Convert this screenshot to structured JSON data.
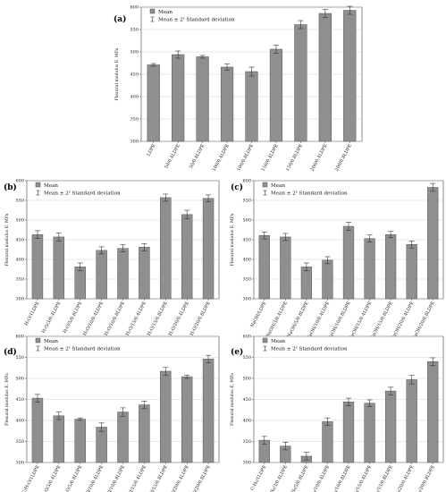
{
  "legend": {
    "mean": "Mean",
    "error": "Mean ± 2",
    "error_sup": "s",
    "error_tail": " Standard deviation"
  },
  "chart_data": [
    {
      "id": "a",
      "label": "(a)",
      "type": "bar",
      "ylabel": "Flexural modulus E, MPa",
      "ylim": [
        300,
        600
      ],
      "yticks": [
        300,
        350,
        400,
        450,
        500,
        550,
        600
      ],
      "categories": [
        "LDPE",
        "50/0.4LDPE",
        "50/0.8LDPE",
        "100/0.4LDPE",
        "100/0.8LDPE",
        "150/0.4LDPE",
        "150/0.8LDPE",
        "200/0.4LDPE",
        "200/0.8LDPE"
      ],
      "values": [
        471,
        494,
        489,
        466,
        456,
        506,
        561,
        586,
        593
      ],
      "errors": [
        3,
        8,
        3,
        7,
        10,
        9,
        9,
        9,
        9
      ],
      "grid": true,
      "legend_position": "top-left"
    },
    {
      "id": "b",
      "label": "(b)",
      "type": "bar",
      "ylabel": "Flexural modulus E, MPa",
      "ylim": [
        300,
        600
      ],
      "yticks": [
        300,
        350,
        400,
        450,
        500,
        550,
        600
      ],
      "categories": [
        "H₂O/1LDPE",
        "H₂O/3/0.4LDPE",
        "H₂O/5/0.8LDPE",
        "H₂O/10/0.4LDPE",
        "H₂O/10/0.8LDPE",
        "H₂O/15/0.4LDPE",
        "H₂O/15/0.8LDPE",
        "H₂O/20/0.4LDPE",
        "H₂O/20/0.8LDPE"
      ],
      "values": [
        463,
        457,
        381,
        423,
        428,
        431,
        557,
        514,
        555
      ],
      "errors": [
        10,
        10,
        10,
        9,
        9,
        9,
        9,
        11,
        9
      ],
      "grid": true,
      "legend_position": "top-left"
    },
    {
      "id": "c",
      "label": "(c)",
      "type": "bar",
      "ylabel": "Flexural modulus E, MPa",
      "ylim": [
        300,
        600
      ],
      "yticks": [
        300,
        350,
        400,
        450,
        500,
        550,
        600
      ],
      "categories": [
        "NaOH/LDPE",
        "NaOH/3/0.4LDPE",
        "NaOH/5/0.8LDPE",
        "NaOH/10/0.4LDPE",
        "NaOH/10/0.8LDPE",
        "NaOH/15/0.4LDPE",
        "NaOH/15/0.8LDPE",
        "NaOH/20/0.4LDPE",
        "NaOH/20/0.8LDPE"
      ],
      "values": [
        461,
        457,
        381,
        398,
        484,
        453,
        463,
        438,
        583
      ],
      "errors": [
        9,
        9,
        10,
        9,
        10,
        9,
        8,
        9,
        10
      ],
      "grid": true,
      "legend_position": "top-left"
    },
    {
      "id": "d",
      "label": "(d)",
      "type": "bar",
      "ylabel": "Flexural modulus E, MPa",
      "ylim": [
        300,
        600
      ],
      "yticks": [
        300,
        350,
        400,
        450,
        500,
        550,
        600
      ],
      "categories": [
        "C₂H₅O/1LDPE",
        "C₂H₅O/3/0.4LDPE",
        "C₂H₅O/5/0.8LDPE",
        "C₂H₅O/10/0.4LDPE",
        "C₂H₅O/10/0.8LDPE",
        "C₂H₅O/15/0.4LDPE",
        "C₂H₅O/15/0.8LDPE",
        "C₂H₅O/20/0.4LDPE",
        "C₂H₅O/20/0.8LDPE"
      ],
      "values": [
        453,
        411,
        403,
        384,
        420,
        437,
        517,
        504,
        546
      ],
      "errors": [
        9,
        9,
        3,
        10,
        10,
        9,
        9,
        4,
        9
      ],
      "grid": true,
      "legend_position": "top-left"
    },
    {
      "id": "e",
      "label": "(e)",
      "type": "bar",
      "ylabel": "Flexural modulus E, MPa",
      "ylim": [
        300,
        600
      ],
      "yticks": [
        300,
        350,
        400,
        450,
        500,
        550,
        600
      ],
      "categories": [
        "C₇H₈/1LDPE",
        "C₇H₈/3/0.4LDPE",
        "C₇H₈/5/0.8LDPE",
        "C₇H₈/10/0.4LDPE",
        "C₇H₈/10/0.8LDPE",
        "C₇H₈/15/0.4LDPE",
        "C₇H₈/15/0.8LDPE",
        "C₇H₈/20/0.4LDPE",
        "C₇H₈/20/0.8LDPE"
      ],
      "values": [
        353,
        339,
        315,
        397,
        444,
        441,
        470,
        497,
        540
      ],
      "errors": [
        9,
        9,
        9,
        9,
        9,
        8,
        9,
        10,
        9
      ],
      "grid": true,
      "legend_position": "top-left"
    }
  ],
  "colors": {
    "bar": "#8f8f8f",
    "bar_edge": "#555555",
    "error": "#333333",
    "grid": "#c8c8c8",
    "axis": "#444444"
  }
}
